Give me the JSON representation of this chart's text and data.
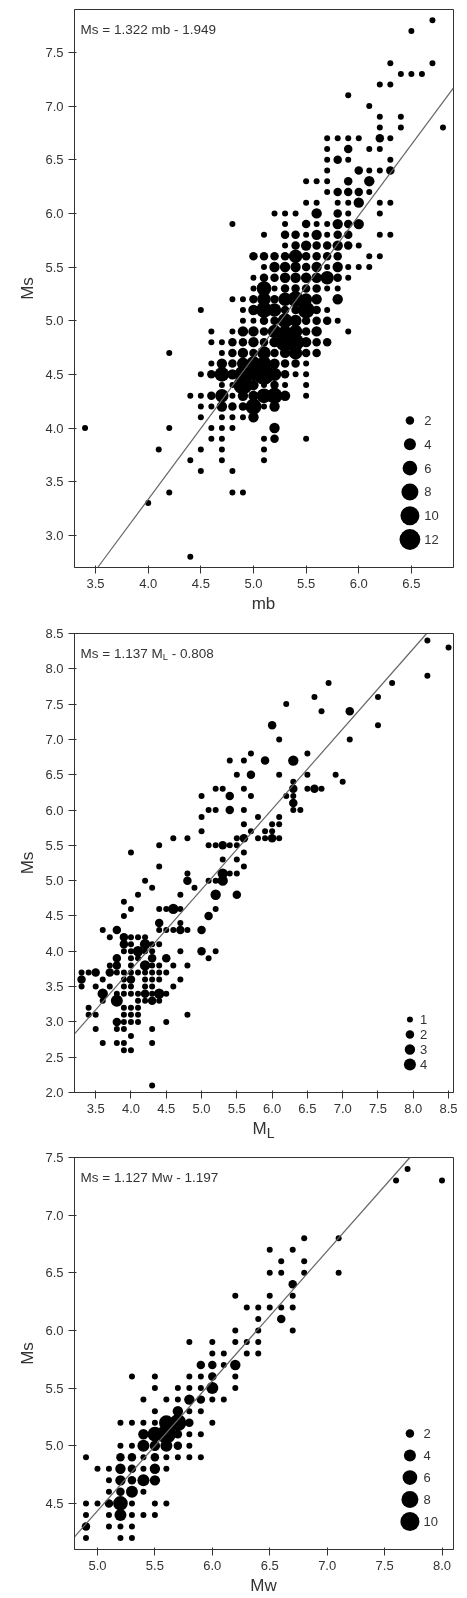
{
  "chart_data": [
    {
      "type": "bubble",
      "xlabel": "mb",
      "ylabel": "Ms",
      "annotations": [
        "Ms = 1.322 mb - 1.949"
      ],
      "xlim": [
        3.3,
        6.9
      ],
      "ylim": [
        2.7,
        7.9
      ],
      "xticks": [
        3.5,
        {
          "value": 4,
          "label": "4.0"
        },
        4.5,
        {
          "value": 5,
          "label": "5.0"
        },
        5.5,
        {
          "value": 6,
          "label": "6.0"
        },
        6.5
      ],
      "yticks": [
        {
          "value": 3,
          "label": "3.0"
        },
        3.5,
        {
          "value": 4,
          "label": "4.0"
        },
        4.5,
        {
          "value": 5,
          "label": "5.0"
        },
        5.5,
        {
          "value": 6,
          "label": "6.0"
        },
        6.5,
        {
          "value": 7,
          "label": "7.0"
        },
        7.5
      ],
      "size_legend": [
        2,
        4,
        6,
        8,
        10,
        12
      ],
      "series": [
        {
          "type": "bubble",
          "color": "#000000",
          "x": [
            6.7,
            6.5,
            6.3,
            6.7,
            6.4,
            6.5,
            6.6,
            6.2,
            6.3,
            5.9,
            6.1,
            6.2,
            6.4,
            6.2,
            6.4,
            6.8,
            5.7,
            5.8,
            5.9,
            6.0,
            6.2,
            6.3,
            5.7,
            5.9,
            6.1,
            6.2,
            5.7,
            5.8,
            5.9,
            6.3,
            5.7,
            6.0,
            6.1,
            6.2,
            6.3,
            5.5,
            5.6,
            5.7,
            5.9,
            6.1,
            5.7,
            5.8,
            5.9,
            6.0,
            6.1,
            5.5,
            5.6,
            5.8,
            5.9,
            6.0,
            6.2,
            6.3,
            5.2,
            5.3,
            5.4,
            5.6,
            5.8,
            5.9,
            6.2,
            4.8,
            5.3,
            5.5,
            5.6,
            5.7,
            5.8,
            5.9,
            6.0,
            5.1,
            5.3,
            5.4,
            5.5,
            5.6,
            5.7,
            5.8,
            5.9,
            6.2,
            6.3,
            5.3,
            5.4,
            5.5,
            5.6,
            5.7,
            5.8,
            5.9,
            6.0,
            5.0,
            5.1,
            5.2,
            5.3,
            5.4,
            5.5,
            5.6,
            5.7,
            5.8,
            6.1,
            6.2,
            5.1,
            5.2,
            5.3,
            5.4,
            5.5,
            5.6,
            5.7,
            5.8,
            5.9,
            6.0,
            6.1,
            5.0,
            5.1,
            5.2,
            5.3,
            5.4,
            5.5,
            5.6,
            5.7,
            5.8,
            5.9,
            5.0,
            5.1,
            5.2,
            5.3,
            5.4,
            5.5,
            5.6,
            5.7,
            5.8,
            4.8,
            4.9,
            5.0,
            5.1,
            5.2,
            5.3,
            5.4,
            5.5,
            5.6,
            5.8,
            4.5,
            4.9,
            5.0,
            5.1,
            5.2,
            5.3,
            5.4,
            5.5,
            5.6,
            5.7,
            4.9,
            5.0,
            5.1,
            5.2,
            5.3,
            5.4,
            5.5,
            5.6,
            5.7,
            5.8,
            4.6,
            4.8,
            4.9,
            5.0,
            5.1,
            5.2,
            5.3,
            5.4,
            5.5,
            5.6,
            5.9,
            4.6,
            4.7,
            4.8,
            4.9,
            5.0,
            5.1,
            5.2,
            5.3,
            5.4,
            5.5,
            5.6,
            5.7,
            4.2,
            4.7,
            4.8,
            4.9,
            5.0,
            5.1,
            5.2,
            5.3,
            5.4,
            5.5,
            5.6,
            4.6,
            4.7,
            4.8,
            4.9,
            5.0,
            5.1,
            5.2,
            5.3,
            5.4,
            5.5,
            4.5,
            4.6,
            4.7,
            4.8,
            4.9,
            5.0,
            5.1,
            5.2,
            5.3,
            5.4,
            5.5,
            4.7,
            4.8,
            4.9,
            5.0,
            5.1,
            5.2,
            5.3,
            5.5,
            4.4,
            4.5,
            4.6,
            4.7,
            4.8,
            4.9,
            5.0,
            5.1,
            5.2,
            5.3,
            5.5,
            4.5,
            4.6,
            4.7,
            4.8,
            4.9,
            5.0,
            5.1,
            5.2,
            4.5,
            4.7,
            4.8,
            4.9,
            5.0,
            3.4,
            4.2,
            4.6,
            4.7,
            4.8,
            5.2,
            4.6,
            4.7,
            5.1,
            5.2,
            5.5,
            4.1,
            4.5,
            4.7,
            5.1,
            4.4,
            4.7,
            5.1,
            4.5,
            4.8,
            4.2,
            4.8,
            4.9,
            4.0,
            4.4
          ],
          "values": [
            7.8,
            7.7,
            7.4,
            7.4,
            7.3,
            7.3,
            7.3,
            7.2,
            7.2,
            7.1,
            7.0,
            6.9,
            6.9,
            6.8,
            6.8,
            6.8,
            6.7,
            6.7,
            6.7,
            6.7,
            6.7,
            6.7,
            6.6,
            6.6,
            6.6,
            6.6,
            6.5,
            6.5,
            6.5,
            6.5,
            6.4,
            6.4,
            6.4,
            6.4,
            6.4,
            6.3,
            6.3,
            6.3,
            6.3,
            6.3,
            6.2,
            6.2,
            6.2,
            6.2,
            6.2,
            6.1,
            6.1,
            6.1,
            6.1,
            6.1,
            6.1,
            6.1,
            6.0,
            6.0,
            6.0,
            6.0,
            6.0,
            6.0,
            6.0,
            5.9,
            5.9,
            5.9,
            5.9,
            5.9,
            5.9,
            5.9,
            5.9,
            5.8,
            5.8,
            5.8,
            5.8,
            5.8,
            5.8,
            5.8,
            5.8,
            5.8,
            5.8,
            5.7,
            5.7,
            5.7,
            5.7,
            5.7,
            5.7,
            5.7,
            5.7,
            5.6,
            5.6,
            5.6,
            5.6,
            5.6,
            5.6,
            5.6,
            5.6,
            5.6,
            5.6,
            5.6,
            5.5,
            5.5,
            5.5,
            5.5,
            5.5,
            5.5,
            5.5,
            5.5,
            5.5,
            5.5,
            5.5,
            5.4,
            5.4,
            5.4,
            5.4,
            5.4,
            5.4,
            5.4,
            5.4,
            5.4,
            5.4,
            5.3,
            5.3,
            5.3,
            5.3,
            5.3,
            5.3,
            5.3,
            5.3,
            5.3,
            5.2,
            5.2,
            5.2,
            5.2,
            5.2,
            5.2,
            5.2,
            5.2,
            5.2,
            5.2,
            5.1,
            5.1,
            5.1,
            5.1,
            5.1,
            5.1,
            5.1,
            5.1,
            5.1,
            5.1,
            5.0,
            5.0,
            5.0,
            5.0,
            5.0,
            5.0,
            5.0,
            5.0,
            5.0,
            5.0,
            4.9,
            4.9,
            4.9,
            4.9,
            4.9,
            4.9,
            4.9,
            4.9,
            4.9,
            4.9,
            4.9,
            4.8,
            4.8,
            4.8,
            4.8,
            4.8,
            4.8,
            4.8,
            4.8,
            4.8,
            4.8,
            4.8,
            4.8,
            4.7,
            4.7,
            4.7,
            4.7,
            4.7,
            4.7,
            4.7,
            4.7,
            4.7,
            4.7,
            4.7,
            4.6,
            4.6,
            4.6,
            4.6,
            4.6,
            4.6,
            4.6,
            4.6,
            4.6,
            4.6,
            4.5,
            4.5,
            4.5,
            4.5,
            4.5,
            4.5,
            4.5,
            4.5,
            4.5,
            4.5,
            4.5,
            4.4,
            4.4,
            4.4,
            4.4,
            4.4,
            4.4,
            4.4,
            4.4,
            4.3,
            4.3,
            4.3,
            4.3,
            4.3,
            4.3,
            4.3,
            4.3,
            4.3,
            4.3,
            4.3,
            4.2,
            4.2,
            4.2,
            4.2,
            4.2,
            4.2,
            4.2,
            4.2,
            4.1,
            4.1,
            4.1,
            4.1,
            4.1,
            4.0,
            4.0,
            4.0,
            4.0,
            4.0,
            4.0,
            3.9,
            3.9,
            3.9,
            3.9,
            3.9,
            3.8,
            3.8,
            3.8,
            3.8,
            3.7,
            3.7,
            3.7,
            3.6,
            3.6,
            3.4,
            3.4,
            3.4,
            3.3,
            2.8
          ],
          "sizes": [
            1,
            1,
            1,
            1,
            1,
            1,
            1,
            1,
            1,
            1,
            1,
            1,
            1,
            1,
            1,
            1,
            1,
            1,
            1,
            1,
            2,
            1,
            1,
            2,
            1,
            1,
            1,
            2,
            1,
            1,
            1,
            2,
            1,
            1,
            2,
            1,
            1,
            1,
            2,
            3,
            1,
            2,
            2,
            2,
            1,
            1,
            1,
            1,
            1,
            3,
            1,
            1,
            1,
            1,
            1,
            3,
            2,
            1,
            1,
            1,
            1,
            2,
            1,
            1,
            3,
            2,
            3,
            1,
            2,
            2,
            1,
            3,
            1,
            2,
            2,
            1,
            1,
            1,
            2,
            3,
            2,
            2,
            3,
            2,
            1,
            2,
            2,
            2,
            2,
            5,
            2,
            2,
            2,
            2,
            1,
            1,
            1,
            3,
            3,
            3,
            2,
            3,
            1,
            3,
            1,
            1,
            1,
            1,
            2,
            2,
            3,
            3,
            3,
            3,
            5,
            2,
            1,
            1,
            6,
            1,
            2,
            2,
            2,
            2,
            1,
            1,
            1,
            1,
            2,
            5,
            2,
            5,
            7,
            4,
            3,
            3,
            1,
            1,
            3,
            7,
            5,
            2,
            2,
            8,
            2,
            1,
            1,
            1,
            2,
            2,
            6,
            4,
            2,
            2,
            2,
            1,
            1,
            1,
            3,
            3,
            2,
            5,
            4,
            5,
            2,
            3,
            1,
            1,
            1,
            2,
            2,
            3,
            2,
            3,
            10,
            8,
            3,
            2,
            2,
            1,
            1,
            2,
            3,
            2,
            5,
            2,
            3,
            5,
            2,
            2,
            1,
            3,
            2,
            4,
            6,
            6,
            3,
            2,
            2,
            1,
            1,
            2,
            6,
            3,
            8,
            5,
            12,
            5,
            2,
            1,
            1,
            1,
            1,
            10,
            3,
            1,
            2,
            1,
            1,
            1,
            1,
            2,
            5,
            1,
            3,
            3,
            6,
            7,
            3,
            1,
            1,
            1,
            3,
            2,
            2,
            7,
            1,
            3,
            1,
            1,
            1,
            1,
            3,
            1,
            1,
            1,
            1,
            1,
            3,
            1,
            1,
            1,
            2,
            1,
            1,
            1,
            1,
            1,
            1,
            1,
            1,
            1,
            1,
            1,
            1,
            1,
            1,
            1
          ]
        },
        {
          "type": "line",
          "color": "#666666",
          "x": [
            3.52,
            6.9
          ],
          "values": [
            2.7,
            7.17
          ]
        }
      ]
    },
    {
      "type": "bubble",
      "xlabel": "M$_{L}$",
      "ylabel": "Ms",
      "annotations": [
        "Ms = 1.137 M$_{L}$ - 0.808"
      ],
      "xlim": [
        3.2,
        8.57
      ],
      "ylim": [
        2.0,
        8.5
      ],
      "xticks": [
        3.5,
        {
          "value": 4,
          "label": "4.0"
        },
        4.5,
        {
          "value": 5,
          "label": "5.0"
        },
        5.5,
        {
          "value": 6,
          "label": "6.0"
        },
        6.5,
        {
          "value": 7,
          "label": "7.0"
        },
        7.5,
        {
          "value": 8,
          "label": "8.0"
        },
        8.5
      ],
      "yticks": [
        {
          "value": 2,
          "label": "2.0"
        },
        2.5,
        {
          "value": 3,
          "label": "3.0"
        },
        3.5,
        {
          "value": 4,
          "label": "4.0"
        },
        4.5,
        {
          "value": 5,
          "label": "5.0"
        },
        5.5,
        {
          "value": 6,
          "label": "6.0"
        },
        6.5,
        {
          "value": 7,
          "label": "7.0"
        },
        7.5,
        {
          "value": 8,
          "label": "8.0"
        },
        8.5
      ],
      "size_legend": [
        1,
        2,
        3,
        4
      ],
      "series": [
        {
          "type": "bubble",
          "color": "#000000",
          "x": [
            8.2,
            8.5,
            8.2,
            6.8,
            7.7,
            6.6,
            7.5,
            6.2,
            6.7,
            7.1,
            6.0,
            7.5,
            6.1,
            7.1,
            5.7,
            6.5,
            5.4,
            5.6,
            5.9,
            6.3,
            5.5,
            5.7,
            6.1,
            6.5,
            6.9,
            6.3,
            7.0,
            5.2,
            5.3,
            5.6,
            6.3,
            6.5,
            6.6,
            6.7,
            5.0,
            5.4,
            5.7,
            6.2,
            6.3,
            6.3,
            5.1,
            5.2,
            5.4,
            5.6,
            6.3,
            6.4,
            5.0,
            5.8,
            6.1,
            5.6,
            6.0,
            6.1,
            5.0,
            5.7,
            5.9,
            6.0,
            4.6,
            4.8,
            5.5,
            5.6,
            5.8,
            5.9,
            6.0,
            6.1,
            4.4,
            5.1,
            5.2,
            5.3,
            5.4,
            5.5,
            4.0,
            5.6,
            5.3,
            5.5,
            4.4,
            5.6,
            4.8,
            5.3,
            5.4,
            5.5,
            4.2,
            4.8,
            5.1,
            5.2,
            5.3,
            4.3,
            4.9,
            4.1,
            4.7,
            5.2,
            5.5,
            3.9,
            4.0,
            4.4,
            4.5,
            4.6,
            4.7,
            5.2,
            3.9,
            5.1,
            4.4,
            4.7,
            3.6,
            3.8,
            4.4,
            4.5,
            4.6,
            4.7,
            4.8,
            5.0,
            3.7,
            3.9,
            4.0,
            4.1,
            4.2,
            3.9,
            4.0,
            4.2,
            4.3,
            4.4,
            3.9,
            4.0,
            4.1,
            4.2,
            4.3,
            4.7,
            5.0,
            5.2,
            3.8,
            4.0,
            4.1,
            4.3,
            4.5,
            5.1,
            3.7,
            3.8,
            4.0,
            4.2,
            4.3,
            4.4,
            4.6,
            4.8,
            3.3,
            3.4,
            3.5,
            3.7,
            3.8,
            3.9,
            4.0,
            4.1,
            4.2,
            4.3,
            4.4,
            4.5,
            3.3,
            3.6,
            3.9,
            4.0,
            4.2,
            4.3,
            4.4,
            4.7,
            3.3,
            3.5,
            3.7,
            3.9,
            4.0,
            4.2,
            4.3,
            4.6,
            3.6,
            3.8,
            3.9,
            4.0,
            4.1,
            4.2,
            4.3,
            4.4,
            4.5,
            3.6,
            3.8,
            4.1,
            4.2,
            4.3,
            4.4,
            3.4,
            3.9,
            4.0,
            4.1,
            3.4,
            3.5,
            3.9,
            4.0,
            4.1,
            4.8,
            3.8,
            3.9,
            4.0,
            4.1,
            4.5,
            3.5,
            3.8,
            3.9,
            4.3,
            4.0,
            3.6,
            3.8,
            3.9,
            4.3,
            3.9,
            4.0,
            4.3
          ],
          "values": [
            8.4,
            8.3,
            7.9,
            7.8,
            7.8,
            7.6,
            7.6,
            7.5,
            7.4,
            7.4,
            7.2,
            7.2,
            7.0,
            7.0,
            6.8,
            6.8,
            6.7,
            6.7,
            6.7,
            6.7,
            6.5,
            6.5,
            6.5,
            6.5,
            6.5,
            6.4,
            6.4,
            6.3,
            6.3,
            6.3,
            6.3,
            6.3,
            6.3,
            6.3,
            6.2,
            6.2,
            6.2,
            6.2,
            6.2,
            6.1,
            6.0,
            6.0,
            6.0,
            6.0,
            6.0,
            6.0,
            5.9,
            5.9,
            5.9,
            5.8,
            5.8,
            5.8,
            5.7,
            5.7,
            5.7,
            5.7,
            5.6,
            5.6,
            5.6,
            5.6,
            5.6,
            5.6,
            5.6,
            5.6,
            5.5,
            5.5,
            5.5,
            5.5,
            5.5,
            5.5,
            5.4,
            5.4,
            5.3,
            5.3,
            5.2,
            5.2,
            5.1,
            5.1,
            5.1,
            5.1,
            5.0,
            5.0,
            5.0,
            5.0,
            5.0,
            4.9,
            4.9,
            4.8,
            4.8,
            4.8,
            4.8,
            4.7,
            4.6,
            4.6,
            4.6,
            4.6,
            4.6,
            4.6,
            4.5,
            4.5,
            4.4,
            4.4,
            4.3,
            4.3,
            4.3,
            4.3,
            4.3,
            4.3,
            4.3,
            4.3,
            4.2,
            4.2,
            4.2,
            4.2,
            4.2,
            4.1,
            4.1,
            4.1,
            4.1,
            4.1,
            4.0,
            4.0,
            4.0,
            4.0,
            4.0,
            4.0,
            4.0,
            4.0,
            3.9,
            3.9,
            3.9,
            3.9,
            3.9,
            3.9,
            3.8,
            3.8,
            3.8,
            3.8,
            3.8,
            3.8,
            3.8,
            3.8,
            3.7,
            3.7,
            3.7,
            3.7,
            3.7,
            3.7,
            3.7,
            3.7,
            3.7,
            3.7,
            3.7,
            3.7,
            3.6,
            3.6,
            3.6,
            3.6,
            3.6,
            3.6,
            3.6,
            3.6,
            3.5,
            3.5,
            3.5,
            3.5,
            3.5,
            3.5,
            3.5,
            3.5,
            3.4,
            3.4,
            3.4,
            3.4,
            3.4,
            3.4,
            3.4,
            3.4,
            3.4,
            3.3,
            3.3,
            3.3,
            3.3,
            3.3,
            3.3,
            3.2,
            3.2,
            3.2,
            3.2,
            3.1,
            3.1,
            3.1,
            3.1,
            3.1,
            3.1,
            3.0,
            3.0,
            3.0,
            3.0,
            3.0,
            2.9,
            2.9,
            2.9,
            2.9,
            2.8,
            2.7,
            2.7,
            2.7,
            2.7,
            2.6,
            2.6,
            2.1
          ],
          "sizes": [
            1,
            1,
            1,
            1,
            1,
            1,
            1,
            1,
            1,
            2,
            2,
            1,
            1,
            1,
            1,
            1,
            1,
            1,
            2,
            3,
            1,
            2,
            1,
            1,
            1,
            1,
            1,
            1,
            1,
            1,
            2,
            1,
            2,
            1,
            1,
            2,
            1,
            1,
            1,
            2,
            1,
            1,
            2,
            1,
            1,
            1,
            1,
            1,
            1,
            1,
            1,
            1,
            1,
            1,
            1,
            1,
            1,
            1,
            1,
            2,
            1,
            1,
            2,
            1,
            1,
            1,
            1,
            2,
            1,
            1,
            1,
            1,
            1,
            1,
            1,
            1,
            1,
            3,
            1,
            1,
            1,
            2,
            1,
            1,
            3,
            1,
            1,
            1,
            1,
            3,
            2,
            1,
            1,
            1,
            1,
            3,
            1,
            1,
            1,
            2,
            2,
            1,
            1,
            2,
            1,
            1,
            1,
            2,
            1,
            2,
            1,
            2,
            1,
            1,
            1,
            2,
            1,
            3,
            1,
            1,
            1,
            1,
            3,
            1,
            1,
            1,
            2,
            1,
            2,
            1,
            1,
            2,
            2,
            1,
            1,
            2,
            1,
            3,
            1,
            1,
            1,
            1,
            1,
            1,
            2,
            2,
            1,
            1,
            1,
            1,
            1,
            1,
            1,
            1,
            2,
            1,
            1,
            2,
            1,
            1,
            1,
            1,
            1,
            1,
            1,
            1,
            1,
            1,
            1,
            1,
            3,
            1,
            1,
            1,
            1,
            2,
            1,
            3,
            1,
            1,
            4,
            1,
            1,
            2,
            1,
            1,
            1,
            1,
            1,
            1,
            1,
            1,
            1,
            1,
            1,
            2,
            1,
            1,
            1,
            1,
            1,
            1,
            1,
            1,
            1,
            1,
            1,
            1,
            1,
            1,
            1,
            1
          ]
        },
        {
          "type": "line",
          "color": "#666666",
          "x": [
            3.2,
            8.19
          ],
          "values": [
            2.83,
            8.5
          ]
        }
      ]
    },
    {
      "type": "bubble",
      "xlabel": "Mw",
      "ylabel": "Ms",
      "annotations": [
        "Ms = 1.127 Mw - 1.197"
      ],
      "xlim": [
        4.8,
        8.1
      ],
      "ylim": [
        4.1,
        7.5
      ],
      "xticks": [
        {
          "value": 5,
          "label": "5.0"
        },
        5.5,
        {
          "value": 6,
          "label": "6.0"
        },
        6.5,
        {
          "value": 7,
          "label": "7.0"
        },
        7.5,
        {
          "value": 8,
          "label": "8.0"
        }
      ],
      "yticks": [
        4.5,
        {
          "value": 5,
          "label": "5.0"
        },
        5.5,
        {
          "value": 6,
          "label": "6.0"
        },
        6.5,
        {
          "value": 7,
          "label": "7.0"
        },
        7.5
      ],
      "size_legend": [
        2,
        4,
        6,
        8,
        10
      ],
      "series": [
        {
          "type": "bubble",
          "color": "#000000",
          "x": [
            7.7,
            7.6,
            8.0,
            6.8,
            7.1,
            6.5,
            6.7,
            6.6,
            6.8,
            6.5,
            6.6,
            6.8,
            7.1,
            6.7,
            6.2,
            6.5,
            6.7,
            6.3,
            6.4,
            6.5,
            6.6,
            6.7,
            6.4,
            6.6,
            6.2,
            6.4,
            6.7,
            5.8,
            6.0,
            6.2,
            6.3,
            6.4,
            6.0,
            6.1,
            6.3,
            6.4,
            5.9,
            6.0,
            6.1,
            6.2,
            5.3,
            5.5,
            5.8,
            5.9,
            6.0,
            6.2,
            5.5,
            5.7,
            5.8,
            5.9,
            6.0,
            6.2,
            5.4,
            5.6,
            5.7,
            5.8,
            5.9,
            6.0,
            6.1,
            5.5,
            5.7,
            5.8,
            5.9,
            5.2,
            5.3,
            5.4,
            5.5,
            5.6,
            5.7,
            5.8,
            6.0,
            5.4,
            5.5,
            5.6,
            5.7,
            5.8,
            5.9,
            5.2,
            5.3,
            5.4,
            5.5,
            5.6,
            5.7,
            5.8,
            4.9,
            5.2,
            5.3,
            5.4,
            5.5,
            5.6,
            5.7,
            5.8,
            5.9,
            5.0,
            5.1,
            5.2,
            5.3,
            5.4,
            5.5,
            5.6,
            5.1,
            5.2,
            5.3,
            5.4,
            5.5,
            5.1,
            5.2,
            5.3,
            5.4,
            4.9,
            5.0,
            5.1,
            5.2,
            5.3,
            5.5,
            5.6,
            4.9,
            5.1,
            5.2,
            5.3,
            5.4,
            5.5,
            4.9,
            5.1,
            5.2,
            5.3,
            4.9,
            5.2,
            5.3
          ],
          "values": [
            7.4,
            7.3,
            7.3,
            6.8,
            6.8,
            6.7,
            6.7,
            6.6,
            6.6,
            6.5,
            6.5,
            6.5,
            6.5,
            6.4,
            6.3,
            6.3,
            6.3,
            6.2,
            6.2,
            6.2,
            6.2,
            6.2,
            6.1,
            6.1,
            6.0,
            6.0,
            6.0,
            5.9,
            5.9,
            5.9,
            5.9,
            5.9,
            5.8,
            5.8,
            5.8,
            5.8,
            5.7,
            5.7,
            5.7,
            5.7,
            5.6,
            5.6,
            5.6,
            5.6,
            5.6,
            5.6,
            5.5,
            5.5,
            5.5,
            5.5,
            5.5,
            5.5,
            5.4,
            5.4,
            5.4,
            5.4,
            5.4,
            5.4,
            5.4,
            5.3,
            5.3,
            5.3,
            5.3,
            5.2,
            5.2,
            5.2,
            5.2,
            5.2,
            5.2,
            5.2,
            5.2,
            5.1,
            5.1,
            5.1,
            5.1,
            5.1,
            5.1,
            5.0,
            5.0,
            5.0,
            5.0,
            5.0,
            5.0,
            5.0,
            4.9,
            4.9,
            4.9,
            4.9,
            4.9,
            4.9,
            4.9,
            4.9,
            4.9,
            4.8,
            4.8,
            4.8,
            4.8,
            4.8,
            4.8,
            4.8,
            4.7,
            4.7,
            4.7,
            4.7,
            4.7,
            4.6,
            4.6,
            4.6,
            4.6,
            4.5,
            4.5,
            4.5,
            4.5,
            4.5,
            4.5,
            4.5,
            4.4,
            4.4,
            4.4,
            4.4,
            4.4,
            4.4,
            4.3,
            4.3,
            4.3,
            4.3,
            4.2,
            4.2,
            4.2
          ],
          "sizes": [
            1,
            1,
            1,
            1,
            1,
            1,
            1,
            1,
            1,
            1,
            1,
            1,
            1,
            2,
            1,
            1,
            1,
            1,
            1,
            1,
            1,
            1,
            1,
            2,
            1,
            1,
            1,
            1,
            1,
            1,
            1,
            1,
            1,
            1,
            1,
            1,
            2,
            2,
            1,
            3,
            1,
            1,
            1,
            1,
            2,
            1,
            1,
            1,
            1,
            1,
            4,
            1,
            1,
            1,
            1,
            3,
            2,
            1,
            1,
            1,
            3,
            1,
            1,
            1,
            1,
            1,
            1,
            6,
            8,
            2,
            1,
            3,
            6,
            10,
            2,
            1,
            1,
            1,
            1,
            4,
            3,
            4,
            2,
            1,
            1,
            2,
            2,
            1,
            2,
            1,
            1,
            1,
            1,
            1,
            1,
            3,
            2,
            1,
            3,
            1,
            1,
            3,
            2,
            4,
            3,
            1,
            2,
            4,
            1,
            1,
            1,
            2,
            6,
            1,
            1,
            1,
            1,
            1,
            4,
            1,
            1,
            1,
            2,
            1,
            1,
            1,
            1,
            1,
            1
          ]
        },
        {
          "type": "line",
          "color": "#666666",
          "x": [
            4.8,
            7.72
          ],
          "values": [
            4.21,
            7.5
          ]
        }
      ]
    }
  ]
}
